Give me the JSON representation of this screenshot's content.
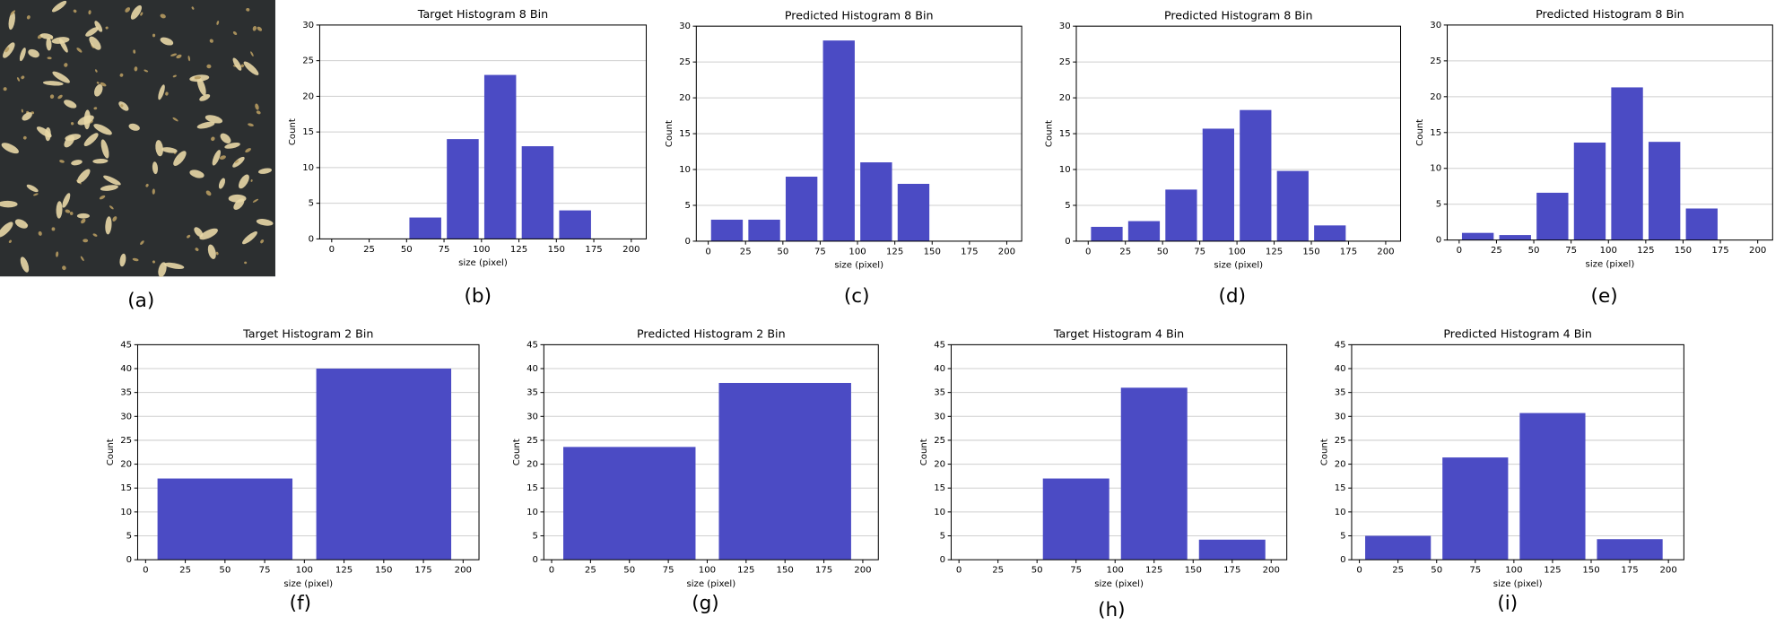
{
  "image_panel": {
    "label": "(a)"
  },
  "chart_data": [
    {
      "type": "histogram",
      "title": "Target Histogram 8 Bin",
      "xlabel": "size (pixel)",
      "ylabel": "Count",
      "panel_label": "(b)",
      "bins": [
        0,
        25,
        50,
        75,
        100,
        125,
        150,
        175,
        200
      ],
      "values": [
        0,
        0,
        3,
        14,
        23,
        13,
        4,
        0
      ],
      "color": "#4b4bc4",
      "xlim": [
        -8,
        210
      ],
      "xticks": [
        0,
        25,
        50,
        75,
        100,
        125,
        150,
        175,
        200
      ],
      "ylim": [
        0,
        30
      ],
      "yticks": [
        0,
        5,
        10,
        15,
        20,
        25,
        30
      ],
      "grid": true
    },
    {
      "type": "histogram",
      "title": "Predicted Histogram 8 Bin",
      "xlabel": "size (pixel)",
      "ylabel": "Count",
      "panel_label": "(c)",
      "bins": [
        0,
        25,
        50,
        75,
        100,
        125,
        150,
        175,
        200
      ],
      "values": [
        3,
        3,
        9,
        28,
        11,
        8,
        0,
        0
      ],
      "color": "#4b4bc4",
      "xlim": [
        -8,
        210
      ],
      "xticks": [
        0,
        25,
        50,
        75,
        100,
        125,
        150,
        175,
        200
      ],
      "ylim": [
        0,
        30
      ],
      "yticks": [
        0,
        5,
        10,
        15,
        20,
        25,
        30
      ],
      "grid": true
    },
    {
      "type": "histogram",
      "title": "Predicted Histogram 8 Bin",
      "xlabel": "size (pixel)",
      "ylabel": "Count",
      "panel_label": "(d)",
      "bins": [
        0,
        25,
        50,
        75,
        100,
        125,
        150,
        175,
        200
      ],
      "values": [
        2,
        2.8,
        7.2,
        15.7,
        18.3,
        9.8,
        2.2,
        0
      ],
      "color": "#4b4bc4",
      "xlim": [
        -8,
        210
      ],
      "xticks": [
        0,
        25,
        50,
        75,
        100,
        125,
        150,
        175,
        200
      ],
      "ylim": [
        0,
        30
      ],
      "yticks": [
        0,
        5,
        10,
        15,
        20,
        25,
        30
      ],
      "grid": true
    },
    {
      "type": "histogram",
      "title": "Predicted Histogram 8 Bin",
      "xlabel": "size (pixel)",
      "ylabel": "Count",
      "panel_label": "(e)",
      "bins": [
        0,
        25,
        50,
        75,
        100,
        125,
        150,
        175,
        200
      ],
      "values": [
        1,
        0.7,
        6.6,
        13.6,
        21.3,
        13.7,
        4.4,
        0
      ],
      "color": "#4b4bc4",
      "xlim": [
        -8,
        210
      ],
      "xticks": [
        0,
        25,
        50,
        75,
        100,
        125,
        150,
        175,
        200
      ],
      "ylim": [
        0,
        30
      ],
      "yticks": [
        0,
        5,
        10,
        15,
        20,
        25,
        30
      ],
      "grid": true
    },
    {
      "type": "histogram",
      "title": "Target Histogram 2 Bin",
      "xlabel": "size (pixel)",
      "ylabel": "Count",
      "panel_label": "(f)",
      "bins": [
        0,
        100,
        200
      ],
      "values": [
        17,
        40
      ],
      "color": "#4b4bc4",
      "xlim": [
        -5,
        210
      ],
      "xticks": [
        0,
        25,
        50,
        75,
        100,
        125,
        150,
        175,
        200
      ],
      "ylim": [
        0,
        45
      ],
      "yticks": [
        0,
        5,
        10,
        15,
        20,
        25,
        30,
        35,
        40,
        45
      ],
      "grid": true
    },
    {
      "type": "histogram",
      "title": "Predicted Histogram 2 Bin",
      "xlabel": "size (pixel)",
      "ylabel": "Count",
      "panel_label": "(g)",
      "bins": [
        0,
        100,
        200
      ],
      "values": [
        23.6,
        37
      ],
      "color": "#4b4bc4",
      "xlim": [
        -5,
        210
      ],
      "xticks": [
        0,
        25,
        50,
        75,
        100,
        125,
        150,
        175,
        200
      ],
      "ylim": [
        0,
        45
      ],
      "yticks": [
        0,
        5,
        10,
        15,
        20,
        25,
        30,
        35,
        40,
        45
      ],
      "grid": true
    },
    {
      "type": "histogram",
      "title": "Target Histogram 4 Bin",
      "xlabel": "size (pixel)",
      "ylabel": "Count",
      "panel_label": "(h)",
      "bins": [
        0,
        50,
        100,
        150,
        200
      ],
      "values": [
        0,
        17,
        36,
        4.2
      ],
      "color": "#4b4bc4",
      "xlim": [
        -5,
        210
      ],
      "xticks": [
        0,
        25,
        50,
        75,
        100,
        125,
        150,
        175,
        200
      ],
      "ylim": [
        0,
        45
      ],
      "yticks": [
        0,
        5,
        10,
        15,
        20,
        25,
        30,
        35,
        40,
        45
      ],
      "grid": true
    },
    {
      "type": "histogram",
      "title": "Predicted Histogram 4 Bin",
      "xlabel": "size (pixel)",
      "ylabel": "Count",
      "panel_label": "(i)",
      "bins": [
        0,
        50,
        100,
        150,
        200
      ],
      "values": [
        5,
        21.4,
        30.7,
        4.3
      ],
      "color": "#4b4bc4",
      "xlim": [
        -5,
        210
      ],
      "xticks": [
        0,
        25,
        50,
        75,
        100,
        125,
        150,
        175,
        200
      ],
      "ylim": [
        0,
        45
      ],
      "yticks": [
        0,
        5,
        10,
        15,
        20,
        25,
        30,
        35,
        40,
        45
      ],
      "grid": true
    }
  ]
}
